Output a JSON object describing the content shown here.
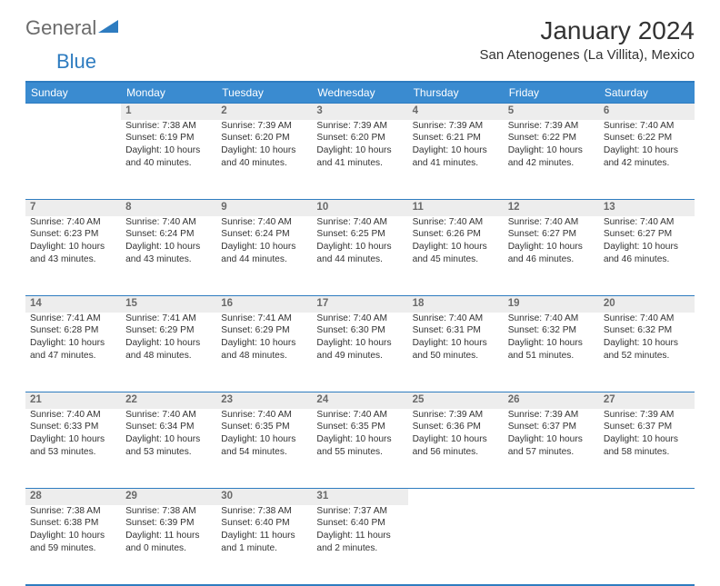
{
  "logo": {
    "word1": "General",
    "word2": "Blue"
  },
  "title": "January 2024",
  "location": "San Atenogenes (La Villita), Mexico",
  "colors": {
    "header_bg": "#3a8bd0",
    "border": "#2e7cc0",
    "daynum_bg": "#ededed",
    "daynum_fg": "#6a6a6a",
    "logo_gray": "#6b6b6b",
    "logo_blue": "#2e7cc0"
  },
  "day_names": [
    "Sunday",
    "Monday",
    "Tuesday",
    "Wednesday",
    "Thursday",
    "Friday",
    "Saturday"
  ],
  "weeks": [
    {
      "nums": [
        "",
        "1",
        "2",
        "3",
        "4",
        "5",
        "6"
      ],
      "cells": [
        null,
        {
          "sunrise": "7:38 AM",
          "sunset": "6:19 PM",
          "daylight": "10 hours and 40 minutes."
        },
        {
          "sunrise": "7:39 AM",
          "sunset": "6:20 PM",
          "daylight": "10 hours and 40 minutes."
        },
        {
          "sunrise": "7:39 AM",
          "sunset": "6:20 PM",
          "daylight": "10 hours and 41 minutes."
        },
        {
          "sunrise": "7:39 AM",
          "sunset": "6:21 PM",
          "daylight": "10 hours and 41 minutes."
        },
        {
          "sunrise": "7:39 AM",
          "sunset": "6:22 PM",
          "daylight": "10 hours and 42 minutes."
        },
        {
          "sunrise": "7:40 AM",
          "sunset": "6:22 PM",
          "daylight": "10 hours and 42 minutes."
        }
      ]
    },
    {
      "nums": [
        "7",
        "8",
        "9",
        "10",
        "11",
        "12",
        "13"
      ],
      "cells": [
        {
          "sunrise": "7:40 AM",
          "sunset": "6:23 PM",
          "daylight": "10 hours and 43 minutes."
        },
        {
          "sunrise": "7:40 AM",
          "sunset": "6:24 PM",
          "daylight": "10 hours and 43 minutes."
        },
        {
          "sunrise": "7:40 AM",
          "sunset": "6:24 PM",
          "daylight": "10 hours and 44 minutes."
        },
        {
          "sunrise": "7:40 AM",
          "sunset": "6:25 PM",
          "daylight": "10 hours and 44 minutes."
        },
        {
          "sunrise": "7:40 AM",
          "sunset": "6:26 PM",
          "daylight": "10 hours and 45 minutes."
        },
        {
          "sunrise": "7:40 AM",
          "sunset": "6:27 PM",
          "daylight": "10 hours and 46 minutes."
        },
        {
          "sunrise": "7:40 AM",
          "sunset": "6:27 PM",
          "daylight": "10 hours and 46 minutes."
        }
      ]
    },
    {
      "nums": [
        "14",
        "15",
        "16",
        "17",
        "18",
        "19",
        "20"
      ],
      "cells": [
        {
          "sunrise": "7:41 AM",
          "sunset": "6:28 PM",
          "daylight": "10 hours and 47 minutes."
        },
        {
          "sunrise": "7:41 AM",
          "sunset": "6:29 PM",
          "daylight": "10 hours and 48 minutes."
        },
        {
          "sunrise": "7:41 AM",
          "sunset": "6:29 PM",
          "daylight": "10 hours and 48 minutes."
        },
        {
          "sunrise": "7:40 AM",
          "sunset": "6:30 PM",
          "daylight": "10 hours and 49 minutes."
        },
        {
          "sunrise": "7:40 AM",
          "sunset": "6:31 PM",
          "daylight": "10 hours and 50 minutes."
        },
        {
          "sunrise": "7:40 AM",
          "sunset": "6:32 PM",
          "daylight": "10 hours and 51 minutes."
        },
        {
          "sunrise": "7:40 AM",
          "sunset": "6:32 PM",
          "daylight": "10 hours and 52 minutes."
        }
      ]
    },
    {
      "nums": [
        "21",
        "22",
        "23",
        "24",
        "25",
        "26",
        "27"
      ],
      "cells": [
        {
          "sunrise": "7:40 AM",
          "sunset": "6:33 PM",
          "daylight": "10 hours and 53 minutes."
        },
        {
          "sunrise": "7:40 AM",
          "sunset": "6:34 PM",
          "daylight": "10 hours and 53 minutes."
        },
        {
          "sunrise": "7:40 AM",
          "sunset": "6:35 PM",
          "daylight": "10 hours and 54 minutes."
        },
        {
          "sunrise": "7:40 AM",
          "sunset": "6:35 PM",
          "daylight": "10 hours and 55 minutes."
        },
        {
          "sunrise": "7:39 AM",
          "sunset": "6:36 PM",
          "daylight": "10 hours and 56 minutes."
        },
        {
          "sunrise": "7:39 AM",
          "sunset": "6:37 PM",
          "daylight": "10 hours and 57 minutes."
        },
        {
          "sunrise": "7:39 AM",
          "sunset": "6:37 PM",
          "daylight": "10 hours and 58 minutes."
        }
      ]
    },
    {
      "nums": [
        "28",
        "29",
        "30",
        "31",
        "",
        "",
        ""
      ],
      "cells": [
        {
          "sunrise": "7:38 AM",
          "sunset": "6:38 PM",
          "daylight": "10 hours and 59 minutes."
        },
        {
          "sunrise": "7:38 AM",
          "sunset": "6:39 PM",
          "daylight": "11 hours and 0 minutes."
        },
        {
          "sunrise": "7:38 AM",
          "sunset": "6:40 PM",
          "daylight": "11 hours and 1 minute."
        },
        {
          "sunrise": "7:37 AM",
          "sunset": "6:40 PM",
          "daylight": "11 hours and 2 minutes."
        },
        null,
        null,
        null
      ]
    }
  ],
  "labels": {
    "sunrise": "Sunrise:",
    "sunset": "Sunset:",
    "daylight": "Daylight:"
  }
}
